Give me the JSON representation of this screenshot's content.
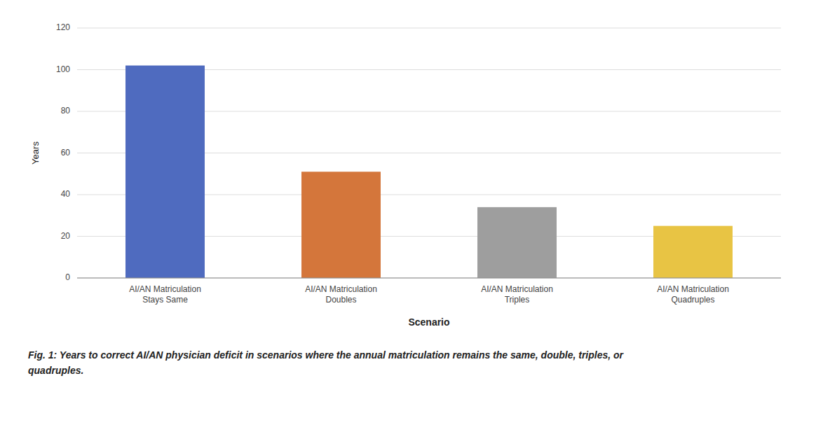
{
  "chart_data": {
    "type": "bar",
    "categories": [
      "AI/AN Matriculation\nStays Same",
      "AI/AN Matriculation\nDoubles",
      "AI/AN Matriculation\nTriples",
      "AI/AN Matriculation\nQuadruples"
    ],
    "values": [
      102,
      51,
      34,
      25
    ],
    "colors": [
      "#4f6bbf",
      "#d4763b",
      "#9e9e9e",
      "#e8c444"
    ],
    "xlabel": "Scenario",
    "ylabel": "Years",
    "ylim": [
      0,
      120
    ],
    "yticks": [
      0,
      20,
      40,
      60,
      80,
      100,
      120
    ],
    "grid": true,
    "annotations": [
      "Fig. 1: Years to correct AI/AN physician deficit in scenarios where the annual matriculation remains the same, double, triples, or",
      "quadruples."
    ]
  }
}
